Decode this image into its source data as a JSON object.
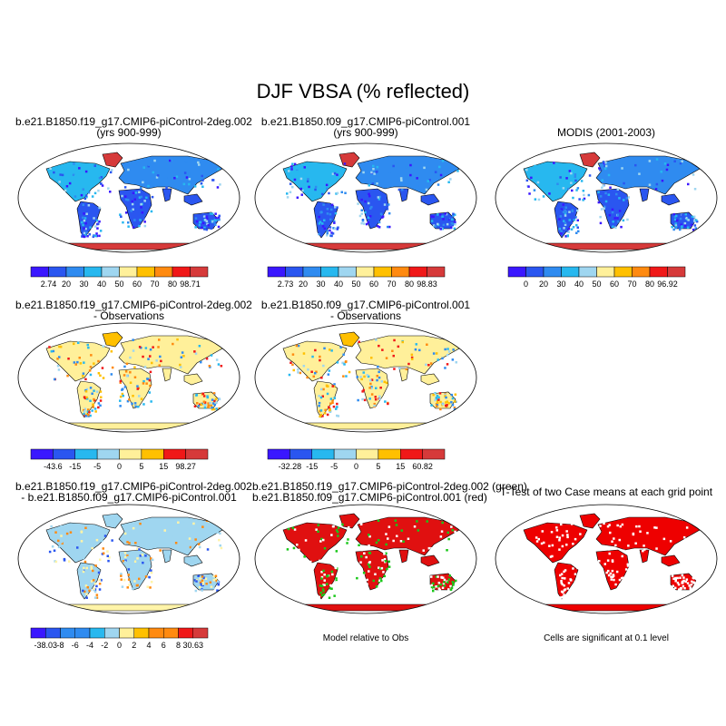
{
  "title": "DJF VBSA (% reflected)",
  "panels": [
    {
      "title1": "b.e21.B1850.f19_g17.CMIP6-piControl-2deg.002",
      "title2": "(yrs 900-999)",
      "scheme": "abs",
      "colorbar": {
        "ticks": [
          "2.74",
          "20",
          "30",
          "40",
          "50",
          "60",
          "70",
          "80",
          "98.71"
        ]
      }
    },
    {
      "title1": "b.e21.B1850.f09_g17.CMIP6-piControl.001",
      "title2": "(yrs 900-999)",
      "scheme": "abs",
      "colorbar": {
        "ticks": [
          "2.73",
          "20",
          "30",
          "40",
          "50",
          "60",
          "70",
          "80",
          "98.83"
        ]
      }
    },
    {
      "title1": "MODIS (2001-2003)",
      "title2": "",
      "scheme": "abs",
      "colorbar": {
        "ticks": [
          "0",
          "20",
          "30",
          "40",
          "50",
          "60",
          "70",
          "80",
          "96.92"
        ]
      }
    },
    {
      "title1": "b.e21.B1850.f19_g17.CMIP6-piControl-2deg.002",
      "title2": "- Observations",
      "scheme": "diff",
      "colorbar": {
        "ticks": [
          "-43.6",
          "-15",
          "-5",
          "0",
          "5",
          "15",
          "98.27"
        ]
      }
    },
    {
      "title1": "b.e21.B1850.f09_g17.CMIP6-piControl.001",
      "title2": "- Observations",
      "scheme": "diff",
      "colorbar": {
        "ticks": [
          "-32.28",
          "-15",
          "-5",
          "0",
          "5",
          "15",
          "60.82"
        ]
      }
    },
    {
      "title1": "b.e21.B1850.f19_g17.CMIP6-piControl-2deg.002",
      "title2": "- b.e21.B1850.f09_g17.CMIP6-piControl.001",
      "scheme": "diff2",
      "colorbar": {
        "ticks": [
          "-38.03",
          "-8",
          "-6",
          "-4",
          "-2",
          "0",
          "2",
          "4",
          "6",
          "8",
          "30.63"
        ]
      }
    },
    {
      "title1": "b.e21.B1850.f19_g17.CMIP6-piControl-2deg.002 (green)",
      "title2": "b.e21.B1850.f09_g17.CMIP6-piControl.001 (red)",
      "scheme": "rg",
      "note": "Model relative to Obs"
    },
    {
      "title1": "T-Test of two Case means at each grid point",
      "title2": "",
      "scheme": "sig",
      "note": "Cells are significant at 0.1 level"
    }
  ],
  "colors": {
    "abs": [
      "#3a17ff",
      "#2a56f0",
      "#2f8bf0",
      "#27b8ef",
      "#9fd6f0",
      "#fff09a",
      "#ffc000",
      "#ff8a10",
      "#f01818",
      "#d63a3a"
    ],
    "diff": [
      "#3a17ff",
      "#2a56f0",
      "#2f8bf0",
      "#27b8ef",
      "#9fd6f0",
      "#fff09a",
      "#ffc000",
      "#ff8a10",
      "#f01818",
      "#d63a3a"
    ],
    "rg_green": "#19c719",
    "rg_red": "#e01010",
    "sig_red": "#ee0000"
  }
}
